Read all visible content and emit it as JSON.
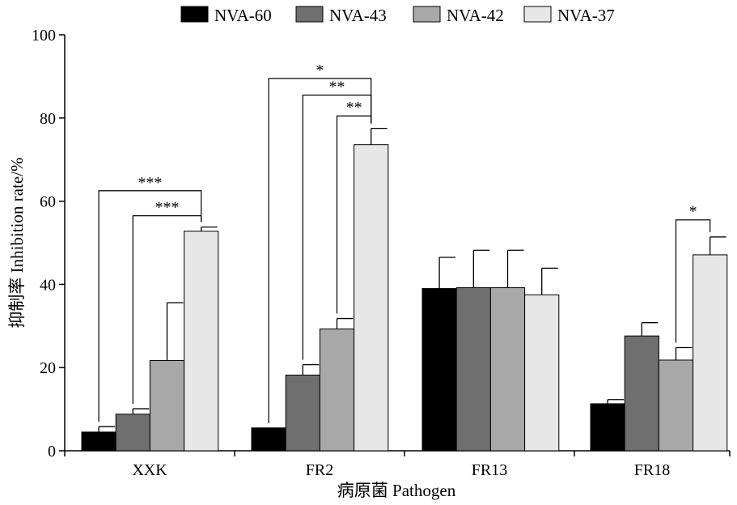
{
  "chart_data": {
    "type": "bar",
    "categories": [
      "XXK",
      "FR2",
      "FR13",
      "FR18"
    ],
    "series": [
      {
        "name": "NVA-60",
        "color": "#000000",
        "values": [
          4.5,
          5.5,
          39.0,
          11.3
        ],
        "errors": [
          1.3,
          0.0,
          7.5,
          1.0
        ]
      },
      {
        "name": "NVA-43",
        "color": "#6f6f6f",
        "values": [
          8.8,
          18.2,
          39.2,
          27.6
        ],
        "errors": [
          1.3,
          2.5,
          9.0,
          3.2
        ]
      },
      {
        "name": "NVA-42",
        "color": "#a8a8a8",
        "values": [
          21.7,
          29.3,
          39.2,
          21.8
        ],
        "errors": [
          13.9,
          2.5,
          9.0,
          3.0
        ]
      },
      {
        "name": "NVA-37",
        "color": "#e7e7e7",
        "values": [
          52.8,
          73.6,
          37.5,
          47.1
        ],
        "errors": [
          1.0,
          3.9,
          6.4,
          4.3
        ]
      }
    ],
    "xlabel": "病原菌 Pathogen",
    "ylabel": "抑制率 Inhibition rate/%",
    "ylim": [
      0,
      100
    ],
    "yticks": [
      "0",
      "20",
      "40",
      "60",
      "80",
      "100"
    ],
    "legend_position": "top",
    "grid": false,
    "significance": [
      {
        "category": 0,
        "from_series": 0,
        "to_series": 3,
        "label": "***",
        "level": 62.5
      },
      {
        "category": 0,
        "from_series": 1,
        "to_series": 3,
        "label": "***",
        "level": 56.5
      },
      {
        "category": 1,
        "from_series": 0,
        "to_series": 3,
        "label": "*",
        "level": 89.5
      },
      {
        "category": 1,
        "from_series": 1,
        "to_series": 3,
        "label": "**",
        "level": 85.5
      },
      {
        "category": 1,
        "from_series": 2,
        "to_series": 3,
        "label": "**",
        "level": 80.5
      },
      {
        "category": 3,
        "from_series": 2,
        "to_series": 3,
        "label": "*",
        "level": 55.5
      }
    ]
  }
}
